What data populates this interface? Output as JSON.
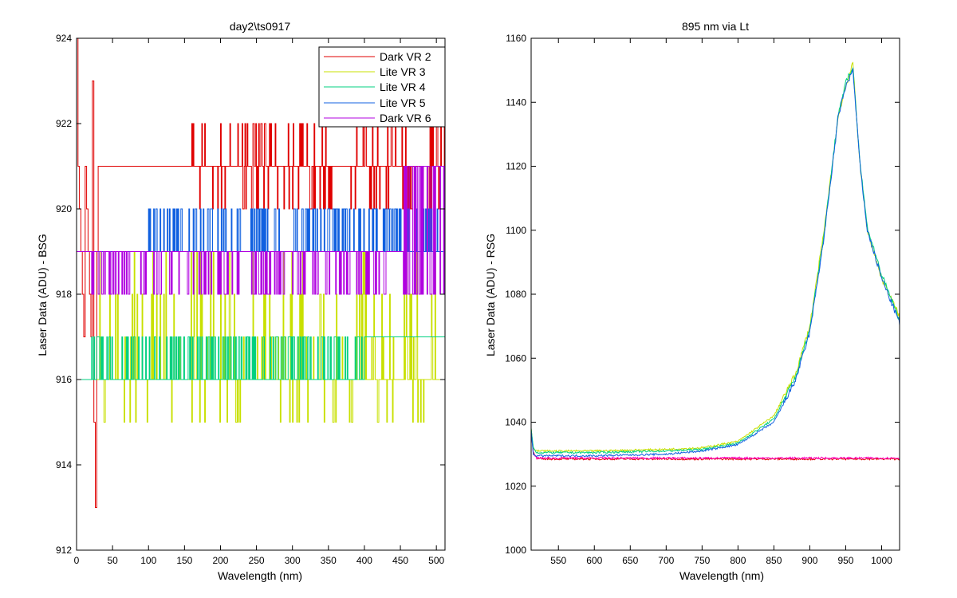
{
  "chart_data": [
    {
      "type": "line",
      "title": "day2\\ts0917",
      "xlabel": "Wavelength (nm)",
      "ylabel": "Laser Data (ADU) - BSG",
      "xlim": [
        0,
        512
      ],
      "ylim": [
        912,
        924
      ],
      "xticks": [
        0,
        50,
        100,
        150,
        200,
        250,
        300,
        350,
        400,
        450,
        500
      ],
      "yticks": [
        912,
        914,
        916,
        918,
        920,
        922,
        924
      ],
      "grid": false,
      "legend_position": "top-right",
      "series": [
        {
          "name": "Dark VR 2",
          "color": "#e00000",
          "base": 921,
          "alt_values": [
            920,
            922
          ],
          "noise_from": 160,
          "initial_values": [
            924,
            921,
            920,
            919,
            918,
            917,
            921,
            920,
            919,
            918,
            917,
            923,
            915,
            913,
            919,
            921
          ],
          "x": [
            0,
            30,
            90,
            130,
            160,
            200,
            250,
            300,
            350,
            400,
            450,
            512
          ],
          "y": [
            921,
            921,
            921,
            921,
            921,
            921,
            921,
            921,
            921,
            921,
            921,
            921
          ]
        },
        {
          "name": "Lite VR 3",
          "color": "#c8e000",
          "base": 916,
          "alt_values": [
            915,
            917,
            918,
            919
          ],
          "noise_from": 20,
          "x": [
            0,
            100,
            200,
            300,
            350,
            400,
            450,
            512
          ],
          "y": [
            916,
            916,
            916,
            916,
            916,
            918,
            918,
            918
          ]
        },
        {
          "name": "Lite VR 4",
          "color": "#00d080",
          "base": 916,
          "alt_values": [
            917
          ],
          "noise_from": 20,
          "shift_at": 400,
          "shift_to": 917,
          "x": [
            0,
            100,
            200,
            300,
            400,
            450,
            512
          ],
          "y": [
            916,
            916,
            916,
            916,
            917,
            917,
            917
          ]
        },
        {
          "name": "Lite VR 5",
          "color": "#1060e0",
          "base": 919,
          "alt_values": [
            920
          ],
          "noise_from": 100,
          "x": [
            0,
            100,
            200,
            300,
            400,
            450,
            512
          ],
          "y": [
            919,
            919,
            919,
            919,
            919,
            919,
            919
          ]
        },
        {
          "name": "Dark VR 6",
          "color": "#b000e0",
          "base": 919,
          "alt_values": [
            918
          ],
          "noise_from": 20,
          "shift_at": 455,
          "shift_to": 921,
          "x": [
            0,
            100,
            200,
            300,
            400,
            450,
            512
          ],
          "y": [
            919,
            919,
            919,
            919,
            919,
            921,
            921
          ]
        }
      ]
    },
    {
      "type": "line",
      "title": "895 nm via Lt",
      "xlabel": "Wavelength (nm)",
      "ylabel": "Laser Data (ADU) - RSG",
      "xlim": [
        512,
        1025
      ],
      "ylim": [
        1000,
        1160
      ],
      "xticks": [
        550,
        600,
        650,
        700,
        750,
        800,
        850,
        900,
        950,
        1000
      ],
      "yticks": [
        1000,
        1020,
        1040,
        1060,
        1080,
        1100,
        1120,
        1140,
        1160
      ],
      "grid": false,
      "series": [
        {
          "color": "#e00000",
          "x": [
            512,
            515,
            520,
            600,
            700,
            800,
            900,
            1000,
            1025
          ],
          "y": [
            1038,
            1031,
            1028.5,
            1028.5,
            1028.5,
            1028.5,
            1028.5,
            1028.5,
            1028.5
          ]
        },
        {
          "color": "#ff00c0",
          "x": [
            512,
            515,
            520,
            600,
            700,
            800,
            900,
            1000,
            1025
          ],
          "y": [
            1037,
            1030,
            1028.8,
            1028.8,
            1028.8,
            1028.8,
            1028.8,
            1028.8,
            1028.8
          ]
        },
        {
          "color": "#c8e000",
          "x": [
            512,
            515,
            520,
            600,
            700,
            750,
            800,
            850,
            880,
            900,
            920,
            940,
            950,
            960,
            970,
            980,
            1000,
            1025
          ],
          "y": [
            1038,
            1032,
            1031,
            1031,
            1031.5,
            1032,
            1034,
            1042,
            1055,
            1070,
            1100,
            1136,
            1145,
            1152,
            1120,
            1100,
            1085,
            1073
          ]
        },
        {
          "color": "#00d080",
          "x": [
            512,
            515,
            520,
            600,
            700,
            750,
            800,
            850,
            880,
            900,
            920,
            940,
            950,
            960,
            970,
            980,
            1000,
            1025
          ],
          "y": [
            1038,
            1032,
            1030.5,
            1030.5,
            1031,
            1031.5,
            1033.5,
            1041,
            1054,
            1069,
            1099,
            1137,
            1146,
            1151,
            1121,
            1101,
            1086,
            1072
          ]
        },
        {
          "color": "#1060e0",
          "x": [
            512,
            515,
            520,
            600,
            700,
            750,
            800,
            850,
            880,
            900,
            920,
            940,
            950,
            960,
            970,
            980,
            1000,
            1025
          ],
          "y": [
            1037,
            1030,
            1029.5,
            1029.5,
            1030,
            1031,
            1033,
            1040,
            1053,
            1068,
            1098,
            1136,
            1145,
            1150,
            1120,
            1100,
            1085,
            1071
          ]
        }
      ]
    }
  ]
}
